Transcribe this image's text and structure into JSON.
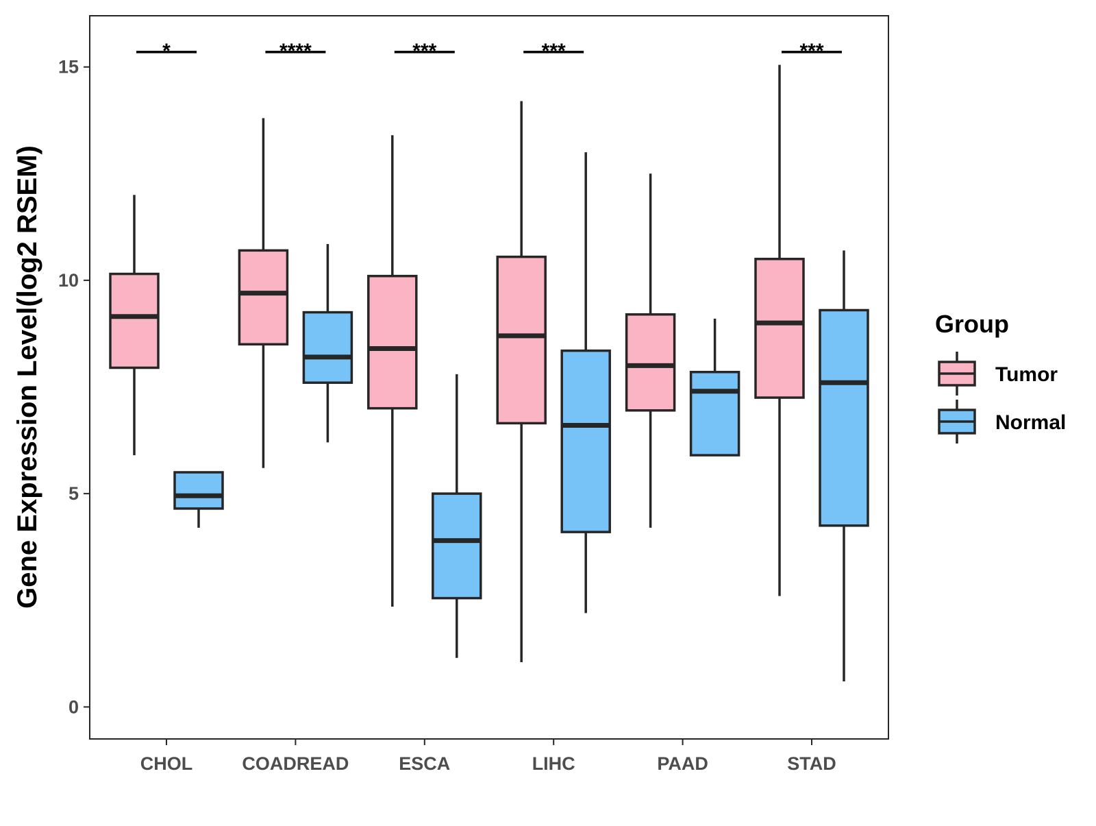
{
  "chart_data": {
    "type": "boxplot",
    "title": "",
    "xlabel": "",
    "ylabel": "Gene Expression Level(log2 RSEM)",
    "ylim": [
      -0.75,
      16.2
    ],
    "yticks": [
      0,
      5,
      10,
      15
    ],
    "grid": false,
    "legend": {
      "title": "Group",
      "position": "right",
      "entries": [
        "Tumor",
        "Normal"
      ]
    },
    "colors": {
      "Tumor": "#fbb4c4",
      "Normal": "#77c2f7",
      "stroke": "#262626"
    },
    "categories": [
      "CHOL",
      "COADREAD",
      "ESCA",
      "LIHC",
      "PAAD",
      "STAD"
    ],
    "series": [
      {
        "name": "Tumor",
        "boxes": [
          {
            "category": "CHOL",
            "min": 5.9,
            "q1": 7.95,
            "median": 9.15,
            "q3": 10.15,
            "max": 12.0
          },
          {
            "category": "COADREAD",
            "min": 5.6,
            "q1": 8.5,
            "median": 9.7,
            "q3": 10.7,
            "max": 13.8
          },
          {
            "category": "ESCA",
            "min": 2.35,
            "q1": 7.0,
            "median": 8.4,
            "q3": 10.1,
            "max": 13.4
          },
          {
            "category": "LIHC",
            "min": 1.05,
            "q1": 6.65,
            "median": 8.7,
            "q3": 10.55,
            "max": 14.2
          },
          {
            "category": "PAAD",
            "min": 4.2,
            "q1": 6.95,
            "median": 8.0,
            "q3": 9.2,
            "max": 12.5
          },
          {
            "category": "STAD",
            "min": 2.6,
            "q1": 7.25,
            "median": 9.0,
            "q3": 10.5,
            "max": 15.05
          }
        ]
      },
      {
        "name": "Normal",
        "boxes": [
          {
            "category": "CHOL",
            "min": 4.2,
            "q1": 4.65,
            "median": 4.95,
            "q3": 5.5,
            "max": 5.5
          },
          {
            "category": "COADREAD",
            "min": 6.2,
            "q1": 7.6,
            "median": 8.2,
            "q3": 9.25,
            "max": 10.85
          },
          {
            "category": "ESCA",
            "min": 1.15,
            "q1": 2.55,
            "median": 3.9,
            "q3": 5.0,
            "max": 7.8
          },
          {
            "category": "LIHC",
            "min": 2.2,
            "q1": 4.1,
            "median": 6.6,
            "q3": 8.35,
            "max": 13.0
          },
          {
            "category": "PAAD",
            "min": 5.9,
            "q1": 5.9,
            "median": 7.4,
            "q3": 7.85,
            "max": 9.1
          },
          {
            "category": "STAD",
            "min": 0.6,
            "q1": 4.25,
            "median": 7.6,
            "q3": 9.3,
            "max": 10.7
          }
        ]
      }
    ],
    "annotations": [
      {
        "category": "CHOL",
        "label": "*"
      },
      {
        "category": "COADREAD",
        "label": "****"
      },
      {
        "category": "ESCA",
        "label": "***"
      },
      {
        "category": "LIHC",
        "label": "***"
      },
      {
        "category": "STAD",
        "label": "***"
      }
    ]
  }
}
